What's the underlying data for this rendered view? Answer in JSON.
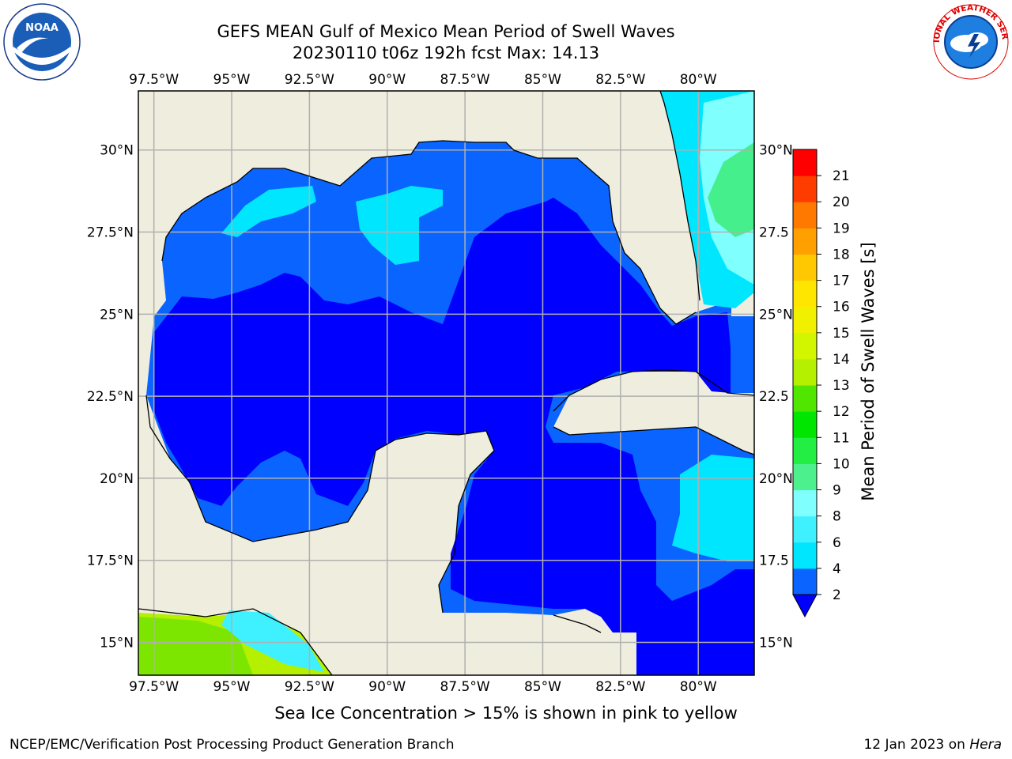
{
  "title": {
    "line1": "GEFS MEAN Gulf of Mexico Mean Period of Swell Waves",
    "line2": "20230110 t06z 192h fcst   Max: 14.13"
  },
  "map": {
    "lon_labels": [
      "97.5°W",
      "95°W",
      "92.5°W",
      "90°W",
      "87.5°W",
      "85°W",
      "82.5°W",
      "80°W"
    ],
    "lat_labels_left": [
      "30°N",
      "27.5°N",
      "25°N",
      "22.5°N",
      "20°N",
      "17.5°N",
      "15°N"
    ],
    "lat_labels_right": [
      "30°N",
      "27.5",
      "25°N",
      "22.5",
      "20°N",
      "17.5",
      "15°N"
    ],
    "extent": {
      "lon": [
        -98,
        -78.2
      ],
      "lat": [
        14,
        31.8
      ]
    },
    "colors": {
      "land": "#efedde",
      "ocean_low": "#0000ff",
      "ocean_2_4": "#0a64ff",
      "ocean_4_6": "#00e6ff",
      "ocean_6_8": "#3ff0ff",
      "ocean_8_9": "#80ffff",
      "green": "#45f08c",
      "yellow_green": "#b4f000",
      "grid": "#b0b0b0"
    }
  },
  "colorbar": {
    "label": "Mean Period of Swell Waves [s]",
    "ticks": [
      "2",
      "4",
      "6",
      "8",
      "9",
      "10",
      "11",
      "12",
      "13",
      "14",
      "15",
      "16",
      "17",
      "18",
      "19",
      "20",
      "21"
    ],
    "colors": [
      "#0a64ff",
      "#00e6ff",
      "#3ff0ff",
      "#80ffff",
      "#4cf08c",
      "#22ee44",
      "#00e600",
      "#50e600",
      "#b4f000",
      "#d2f500",
      "#f0f000",
      "#ffe600",
      "#ffc800",
      "#ffa000",
      "#ff7800",
      "#ff3c00",
      "#ff0000"
    ],
    "extend_color": "#0000ff"
  },
  "note": "Sea Ice Concentration > 15% is shown in pink to yellow",
  "footer": {
    "left": "NCEP/EMC/Verification Post Processing Product Generation Branch",
    "right_prefix": "12 Jan 2023 on ",
    "right_host": "Hera"
  },
  "logos": {
    "left_icon": "noaa-logo-icon",
    "left_text": "NOAA",
    "right_icon": "nws-logo-icon",
    "right_text": "NATIONAL WEATHER SERVICE"
  }
}
